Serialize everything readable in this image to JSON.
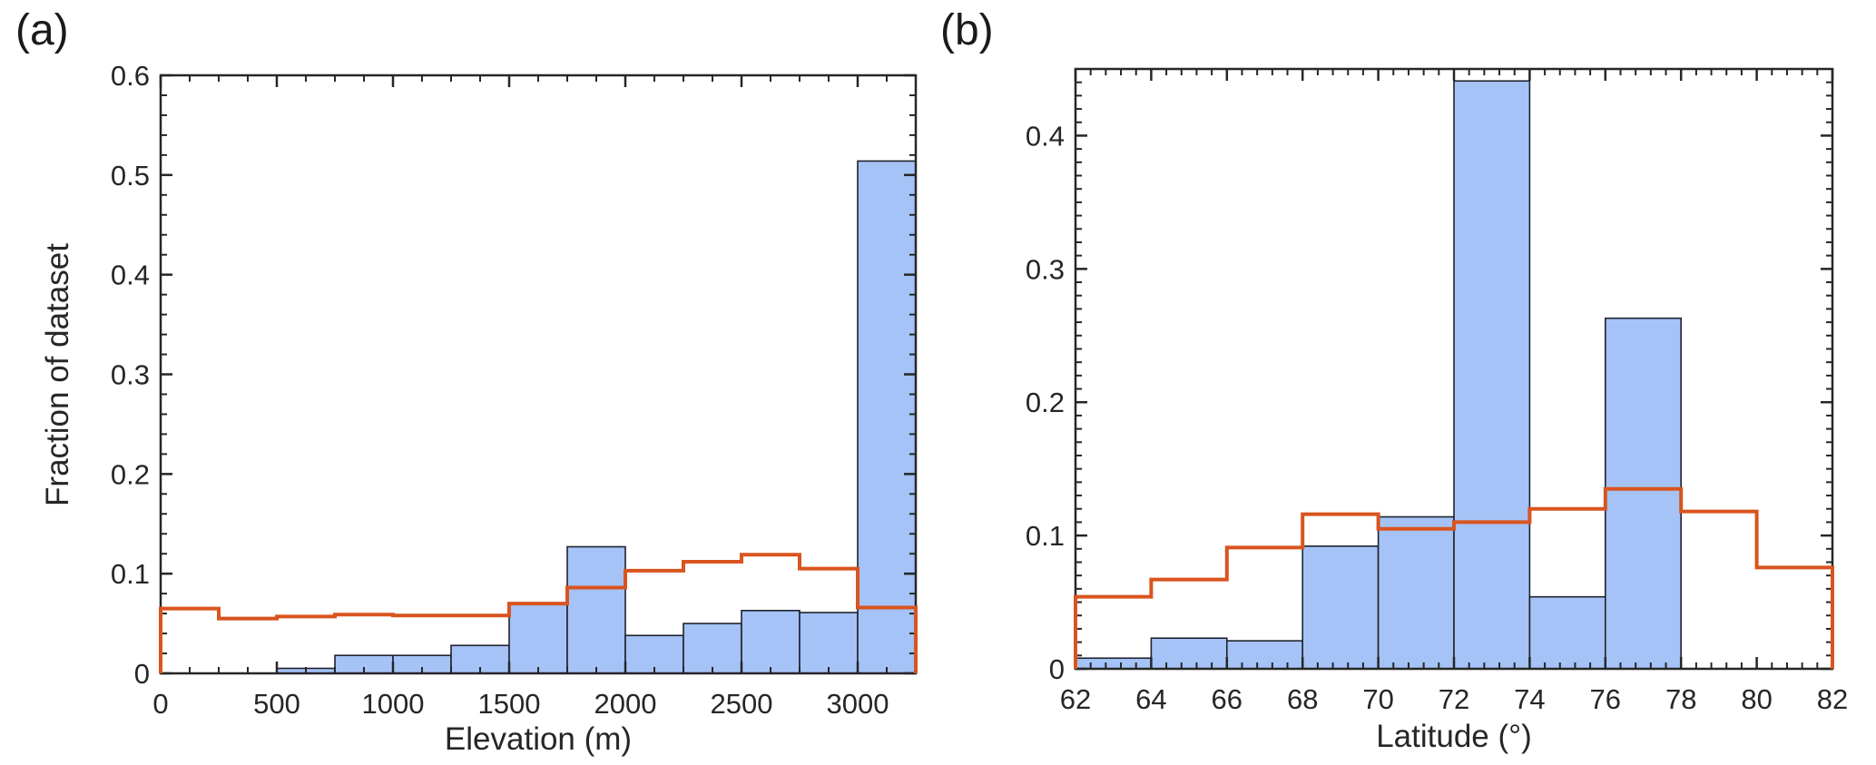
{
  "figure": {
    "background": "#ffffff",
    "axis_color": "#262626",
    "panels": [
      {
        "label": "(a)"
      },
      {
        "label": "(b)"
      }
    ]
  },
  "chart_data": [
    {
      "type": "bar",
      "panel": "(a)",
      "title": "",
      "xlabel": "Elevation (m)",
      "ylabel": "Fraction of dataset",
      "xlim": [
        0,
        3250
      ],
      "ylim": [
        0,
        0.6
      ],
      "grid": false,
      "legend": "none",
      "x_ticks": [
        0,
        500,
        1000,
        1500,
        2000,
        2500,
        3000
      ],
      "x_tick_labels": [
        "0",
        "500",
        "1000",
        "1500",
        "2000",
        "2500",
        "3000"
      ],
      "x_minor_step": 125,
      "y_ticks": [
        0,
        0.1,
        0.2,
        0.3,
        0.4,
        0.5,
        0.6
      ],
      "y_tick_labels": [
        "0",
        "0.1",
        "0.2",
        "0.3",
        "0.4",
        "0.5",
        "0.6"
      ],
      "y_minor_step": 0.02,
      "bin_edges": [
        0,
        250,
        500,
        750,
        1000,
        1250,
        1500,
        1750,
        2000,
        2250,
        2500,
        2750,
        3000,
        3250
      ],
      "series": [
        {
          "name": "blue-filled-histogram",
          "style": "bar",
          "fill": "#a5c3f7",
          "edge": "#20222e",
          "values": [
            0,
            0,
            0.005,
            0.018,
            0.018,
            0.028,
            0.069,
            0.127,
            0.038,
            0.05,
            0.063,
            0.061,
            0.514
          ]
        },
        {
          "name": "orange-step-outline",
          "style": "stairs",
          "color": "#d9541e",
          "values": [
            0.065,
            0.055,
            0.057,
            0.059,
            0.058,
            0.058,
            0.07,
            0.086,
            0.103,
            0.112,
            0.119,
            0.105,
            0.066
          ]
        }
      ]
    },
    {
      "type": "bar",
      "panel": "(b)",
      "title": "",
      "xlabel": "Latitude (°)",
      "ylabel": "",
      "xlim": [
        62,
        82
      ],
      "ylim": [
        0,
        0.45
      ],
      "grid": false,
      "legend": "none",
      "x_ticks": [
        62,
        64,
        66,
        68,
        70,
        72,
        74,
        76,
        78,
        80,
        82
      ],
      "x_tick_labels": [
        "62",
        "64",
        "66",
        "68",
        "70",
        "72",
        "74",
        "76",
        "78",
        "80",
        "82"
      ],
      "x_minor_step": 0.4,
      "y_ticks": [
        0,
        0.1,
        0.2,
        0.3,
        0.4
      ],
      "y_tick_labels": [
        "0",
        "0.1",
        "0.2",
        "0.3",
        "0.4"
      ],
      "y_minor_step": 0.01,
      "bin_edges": [
        62,
        64,
        66,
        68,
        70,
        72,
        74,
        76,
        78,
        80,
        82
      ],
      "series": [
        {
          "name": "blue-filled-histogram",
          "style": "bar",
          "fill": "#a5c3f7",
          "edge": "#20222e",
          "values": [
            0.008,
            0.023,
            0.021,
            0.092,
            0.114,
            0.441,
            0.054,
            0.263,
            0,
            0
          ]
        },
        {
          "name": "orange-step-outline",
          "style": "stairs",
          "color": "#d9541e",
          "values": [
            0.054,
            0.067,
            0.091,
            0.116,
            0.105,
            0.11,
            0.12,
            0.135,
            0.118,
            0.076
          ]
        }
      ]
    }
  ]
}
